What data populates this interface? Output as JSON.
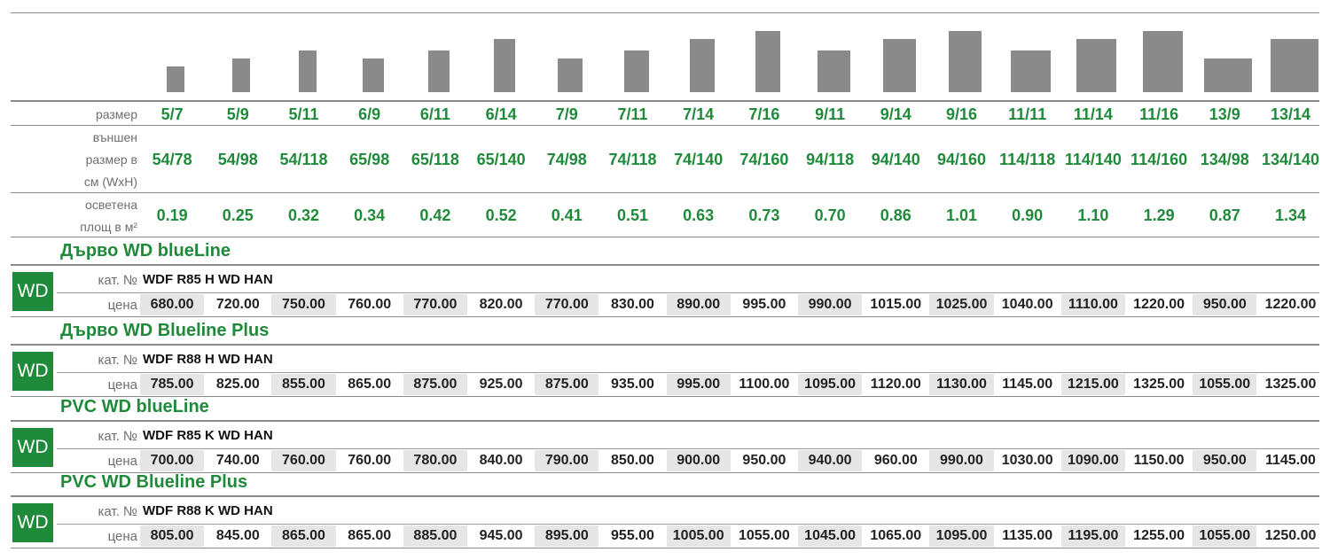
{
  "columns": {
    "sizes": [
      "5/7",
      "5/9",
      "5/11",
      "6/9",
      "6/11",
      "6/14",
      "7/9",
      "7/11",
      "7/14",
      "7/16",
      "9/11",
      "9/14",
      "9/16",
      "11/11",
      "11/14",
      "11/16",
      "13/9",
      "13/14"
    ],
    "outer": [
      "54/78",
      "54/98",
      "54/118",
      "65/98",
      "65/118",
      "65/140",
      "74/98",
      "74/118",
      "74/140",
      "74/160",
      "94/118",
      "94/140",
      "94/160",
      "114/118",
      "114/140",
      "114/160",
      "134/98",
      "134/140"
    ],
    "area": [
      "0.19",
      "0.25",
      "0.32",
      "0.34",
      "0.42",
      "0.52",
      "0.41",
      "0.51",
      "0.63",
      "0.73",
      "0.70",
      "0.86",
      "1.01",
      "0.90",
      "1.10",
      "1.29",
      "0.87",
      "1.34"
    ]
  },
  "row_labels": {
    "size": "размер",
    "outer_l1": "външен",
    "outer_l2": "размер в",
    "outer_l3": "см (WxH)",
    "area_l1": "осветена",
    "area_l2": "площ в м²"
  },
  "sections": [
    {
      "title": "Дърво WD blueLine",
      "badge": "WD",
      "kat_label": "кат. №",
      "kat": "WDF R85 H WD HAN",
      "price_label": "цена",
      "prices": [
        "680.00",
        "720.00",
        "750.00",
        "760.00",
        "770.00",
        "820.00",
        "770.00",
        "830.00",
        "890.00",
        "995.00",
        "990.00",
        "1015.00",
        "1025.00",
        "1040.00",
        "1110.00",
        "1220.00",
        "950.00",
        "1220.00"
      ]
    },
    {
      "title": "Дърво WD Blueline Plus",
      "badge": "WD",
      "kat_label": "кат. №",
      "kat": "WDF R88 H WD HAN",
      "price_label": "цена",
      "prices": [
        "785.00",
        "825.00",
        "855.00",
        "865.00",
        "875.00",
        "925.00",
        "875.00",
        "935.00",
        "995.00",
        "1100.00",
        "1095.00",
        "1120.00",
        "1130.00",
        "1145.00",
        "1215.00",
        "1325.00",
        "1055.00",
        "1325.00"
      ]
    },
    {
      "title": "PVC WD blueLine",
      "badge": "WD",
      "kat_label": "кат. №",
      "kat": "WDF R85 K WD HAN",
      "price_label": "цена",
      "prices": [
        "700.00",
        "740.00",
        "760.00",
        "760.00",
        "780.00",
        "840.00",
        "790.00",
        "850.00",
        "900.00",
        "950.00",
        "940.00",
        "960.00",
        "990.00",
        "1030.00",
        "1090.00",
        "1150.00",
        "950.00",
        "1145.00"
      ]
    },
    {
      "title": "PVC WD Blueline Plus",
      "badge": "WD",
      "kat_label": "кат. №",
      "kat": "WDF R88 K WD HAN",
      "price_label": "цена",
      "prices": [
        "805.00",
        "845.00",
        "865.00",
        "865.00",
        "885.00",
        "945.00",
        "895.00",
        "955.00",
        "1005.00",
        "1055.00",
        "1045.00",
        "1065.00",
        "1095.00",
        "1135.00",
        "1195.00",
        "1255.00",
        "1055.00",
        "1250.00"
      ]
    }
  ],
  "icon_levels": {
    "note": "",
    "values": []
  }
}
